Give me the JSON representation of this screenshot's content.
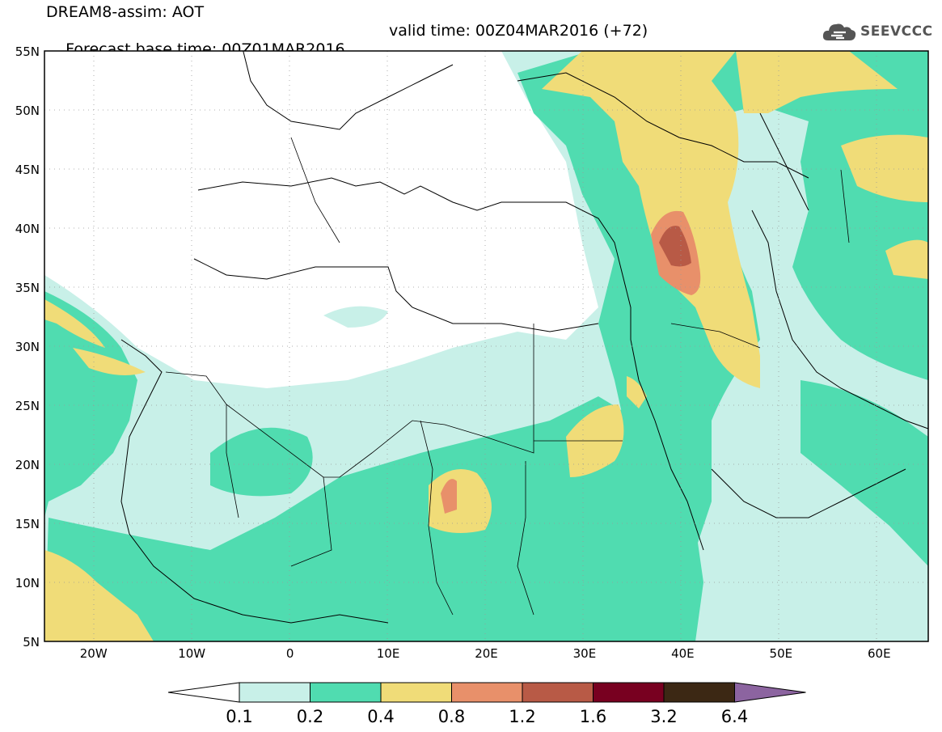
{
  "header": {
    "title": "DREAM8-assim: AOT",
    "base_time": "Forecast base time: 00Z01MAR2016",
    "valid_time": "valid time: 00Z04MAR2016 (+72)"
  },
  "logo": {
    "text": "SEEVCCC",
    "icon": "cloud-icon"
  },
  "map": {
    "lat_labels": [
      "55N",
      "50N",
      "45N",
      "40N",
      "35N",
      "30N",
      "25N",
      "20N",
      "15N",
      "10N",
      "5N"
    ],
    "lon_labels": [
      "20W",
      "10W",
      "0",
      "10E",
      "20E",
      "30E",
      "40E",
      "50E",
      "60E"
    ],
    "lon_range": [
      -25,
      65
    ],
    "lat_range": [
      5,
      55
    ]
  },
  "legend": {
    "colors": [
      "#ffffff",
      "#c8f0e8",
      "#50dcb0",
      "#f0dc78",
      "#e8906a",
      "#b85a46",
      "#780020",
      "#3c2814",
      "#8c64a0"
    ],
    "ticks": [
      "0.1",
      "0.2",
      "0.4",
      "0.8",
      "1.2",
      "1.6",
      "3.2",
      "6.4"
    ]
  }
}
